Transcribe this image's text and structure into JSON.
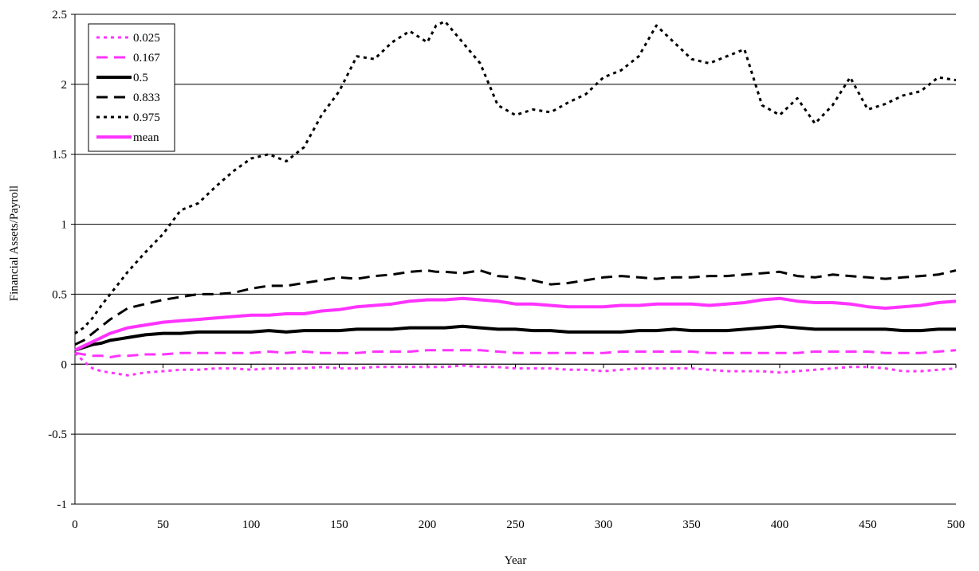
{
  "chart_data": {
    "type": "line",
    "xlabel": "Year",
    "ylabel": "Financial Assets/Payroll",
    "xlim": [
      0,
      500
    ],
    "ylim": [
      -1,
      2.5
    ],
    "x_ticks": [
      0,
      50,
      100,
      150,
      200,
      250,
      300,
      350,
      400,
      450,
      500
    ],
    "y_ticks": [
      -1,
      -0.5,
      0,
      0.5,
      1,
      1.5,
      2,
      2.5
    ],
    "y_tick_labels": [
      "-1",
      "-0.5",
      "0",
      "0.5",
      "1",
      "1.5",
      "2",
      "2.5"
    ],
    "grid": "horizontal",
    "legend_position": "top-left",
    "x": [
      0,
      5,
      10,
      15,
      20,
      25,
      30,
      40,
      50,
      60,
      70,
      80,
      90,
      100,
      110,
      120,
      130,
      140,
      150,
      160,
      170,
      180,
      190,
      200,
      205,
      210,
      220,
      230,
      240,
      250,
      260,
      270,
      280,
      290,
      300,
      310,
      320,
      330,
      340,
      350,
      360,
      370,
      380,
      390,
      400,
      410,
      420,
      430,
      440,
      450,
      460,
      470,
      480,
      490,
      500
    ],
    "series": [
      {
        "name": "0.025",
        "color": "#ff33ff",
        "dash": "dot",
        "values": [
          0.08,
          0.02,
          -0.03,
          -0.05,
          -0.06,
          -0.07,
          -0.08,
          -0.06,
          -0.05,
          -0.04,
          -0.04,
          -0.03,
          -0.03,
          -0.04,
          -0.03,
          -0.03,
          -0.03,
          -0.02,
          -0.03,
          -0.03,
          -0.02,
          -0.02,
          -0.02,
          -0.02,
          -0.02,
          -0.02,
          -0.01,
          -0.02,
          -0.02,
          -0.03,
          -0.03,
          -0.03,
          -0.04,
          -0.04,
          -0.05,
          -0.04,
          -0.03,
          -0.03,
          -0.03,
          -0.03,
          -0.04,
          -0.05,
          -0.05,
          -0.05,
          -0.06,
          -0.05,
          -0.04,
          -0.03,
          -0.02,
          -0.02,
          -0.03,
          -0.05,
          -0.05,
          -0.04,
          -0.03
        ]
      },
      {
        "name": "0.167",
        "color": "#ff33ff",
        "dash": "dash",
        "values": [
          0.08,
          0.07,
          0.06,
          0.06,
          0.05,
          0.06,
          0.06,
          0.07,
          0.07,
          0.08,
          0.08,
          0.08,
          0.08,
          0.08,
          0.09,
          0.08,
          0.09,
          0.08,
          0.08,
          0.08,
          0.09,
          0.09,
          0.09,
          0.1,
          0.1,
          0.1,
          0.1,
          0.1,
          0.09,
          0.08,
          0.08,
          0.08,
          0.08,
          0.08,
          0.08,
          0.09,
          0.09,
          0.09,
          0.09,
          0.09,
          0.08,
          0.08,
          0.08,
          0.08,
          0.08,
          0.08,
          0.09,
          0.09,
          0.09,
          0.09,
          0.08,
          0.08,
          0.08,
          0.09,
          0.1
        ]
      },
      {
        "name": "0.5",
        "color": "#000000",
        "dash": "solid",
        "values": [
          0.1,
          0.12,
          0.14,
          0.15,
          0.17,
          0.18,
          0.19,
          0.21,
          0.22,
          0.22,
          0.23,
          0.23,
          0.23,
          0.23,
          0.24,
          0.23,
          0.24,
          0.24,
          0.24,
          0.25,
          0.25,
          0.25,
          0.26,
          0.26,
          0.26,
          0.26,
          0.27,
          0.26,
          0.25,
          0.25,
          0.24,
          0.24,
          0.23,
          0.23,
          0.23,
          0.23,
          0.24,
          0.24,
          0.25,
          0.24,
          0.24,
          0.24,
          0.25,
          0.26,
          0.27,
          0.26,
          0.25,
          0.25,
          0.25,
          0.25,
          0.25,
          0.24,
          0.24,
          0.25,
          0.25
        ]
      },
      {
        "name": "0.833",
        "color": "#000000",
        "dash": "dash",
        "values": [
          0.14,
          0.17,
          0.22,
          0.27,
          0.32,
          0.36,
          0.4,
          0.43,
          0.46,
          0.48,
          0.5,
          0.5,
          0.51,
          0.54,
          0.56,
          0.56,
          0.58,
          0.6,
          0.62,
          0.61,
          0.63,
          0.64,
          0.66,
          0.67,
          0.66,
          0.66,
          0.65,
          0.67,
          0.63,
          0.62,
          0.6,
          0.57,
          0.58,
          0.6,
          0.62,
          0.63,
          0.62,
          0.61,
          0.62,
          0.62,
          0.63,
          0.63,
          0.64,
          0.65,
          0.66,
          0.63,
          0.62,
          0.64,
          0.63,
          0.62,
          0.61,
          0.62,
          0.63,
          0.64,
          0.67
        ]
      },
      {
        "name": "0.975",
        "color": "#000000",
        "dash": "dot",
        "values": [
          0.22,
          0.26,
          0.33,
          0.42,
          0.5,
          0.58,
          0.66,
          0.8,
          0.93,
          1.1,
          1.15,
          1.27,
          1.38,
          1.47,
          1.5,
          1.45,
          1.55,
          1.78,
          1.95,
          2.2,
          2.18,
          2.3,
          2.38,
          2.3,
          2.42,
          2.45,
          2.3,
          2.15,
          1.85,
          1.78,
          1.82,
          1.8,
          1.87,
          1.93,
          2.05,
          2.1,
          2.2,
          2.42,
          2.3,
          2.18,
          2.15,
          2.2,
          2.25,
          1.85,
          1.78,
          1.9,
          1.72,
          1.85,
          2.05,
          1.82,
          1.86,
          1.92,
          1.95,
          2.05,
          2.03
        ]
      },
      {
        "name": "mean",
        "color": "#ff33ff",
        "dash": "solid",
        "values": [
          0.1,
          0.13,
          0.16,
          0.19,
          0.22,
          0.24,
          0.26,
          0.28,
          0.3,
          0.31,
          0.32,
          0.33,
          0.34,
          0.35,
          0.35,
          0.36,
          0.36,
          0.38,
          0.39,
          0.41,
          0.42,
          0.43,
          0.45,
          0.46,
          0.46,
          0.46,
          0.47,
          0.46,
          0.45,
          0.43,
          0.43,
          0.42,
          0.41,
          0.41,
          0.41,
          0.42,
          0.42,
          0.43,
          0.43,
          0.43,
          0.42,
          0.43,
          0.44,
          0.46,
          0.47,
          0.45,
          0.44,
          0.44,
          0.43,
          0.41,
          0.4,
          0.41,
          0.42,
          0.44,
          0.45
        ]
      }
    ]
  }
}
